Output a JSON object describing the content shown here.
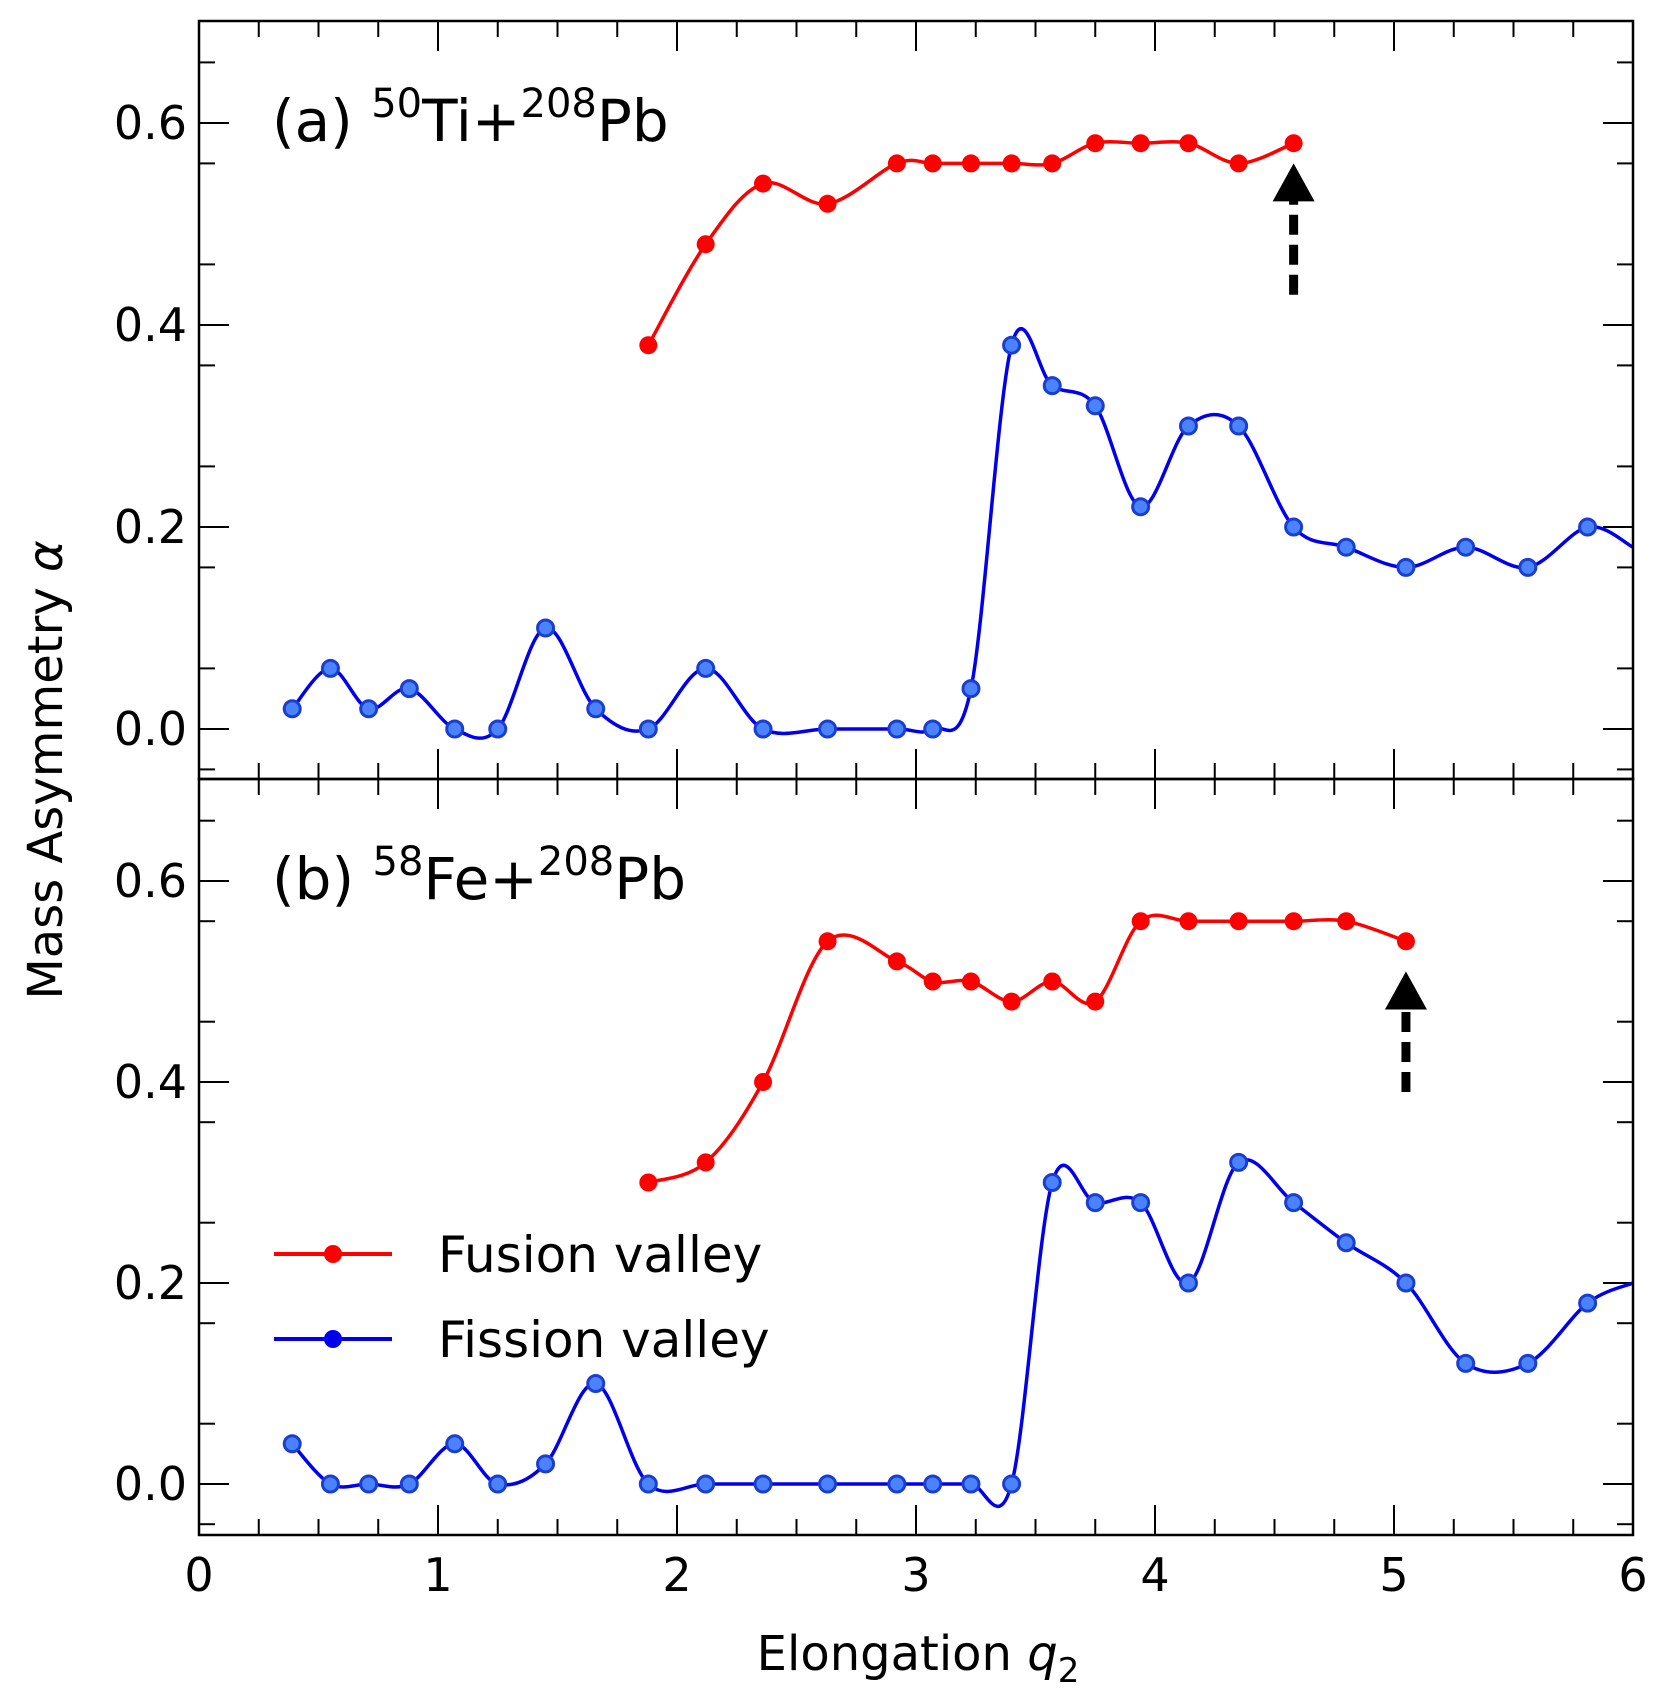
{
  "figure": {
    "ylabel_text": "Mass Asymmetry ",
    "ylabel_symbol": "α",
    "xlabel_text": "Elongation ",
    "xlabel_symbol": "q",
    "xlabel_sub": "2"
  },
  "legend": {
    "placement": "lower-left of panel (b)",
    "items": [
      {
        "label": "Fusion valley",
        "color": "#ff0000"
      },
      {
        "label": "Fission valley",
        "color": "#0000ee"
      }
    ]
  },
  "chart_data": [
    {
      "type": "line",
      "panel": "a",
      "title_prefix": "(a) ",
      "title_parts": [
        {
          "sup": "50",
          "text": "Ti+"
        },
        {
          "sup": "208",
          "text": "Pb"
        }
      ],
      "xlim": [
        0,
        6
      ],
      "ylim": [
        -0.05,
        0.7
      ],
      "xticks": [
        "0",
        "1",
        "2",
        "3",
        "4",
        "5",
        "6"
      ],
      "yticks": [
        "0.0",
        "0.2",
        "0.4",
        "0.6"
      ],
      "arrow": {
        "x": 4.58,
        "y_from": 0.43,
        "y_to": 0.56
      },
      "series": [
        {
          "name": "Fusion valley",
          "color": "#ff0000",
          "x": [
            1.88,
            2.12,
            2.36,
            2.63,
            2.92,
            3.07,
            3.23,
            3.4,
            3.57,
            3.75,
            3.94,
            4.14,
            4.35,
            4.58
          ],
          "y": [
            0.38,
            0.48,
            0.54,
            0.52,
            0.56,
            0.56,
            0.56,
            0.56,
            0.56,
            0.58,
            0.58,
            0.58,
            0.56,
            0.58
          ]
        },
        {
          "name": "Fission valley",
          "color": "#0000ee",
          "x": [
            0.39,
            0.55,
            0.71,
            0.88,
            1.07,
            1.25,
            1.45,
            1.66,
            1.88,
            2.12,
            2.36,
            2.63,
            2.92,
            3.07,
            3.23,
            3.4,
            3.57,
            3.75,
            3.94,
            4.14,
            4.35,
            4.58,
            4.8,
            5.05,
            5.3,
            5.56,
            5.81,
            6.0
          ],
          "y": [
            0.02,
            0.06,
            0.02,
            0.04,
            0.0,
            0.0,
            0.1,
            0.02,
            0.0,
            0.06,
            0.0,
            0.0,
            0.0,
            0.0,
            0.04,
            0.38,
            0.34,
            0.32,
            0.22,
            0.3,
            0.3,
            0.2,
            0.18,
            0.16,
            0.18,
            0.16,
            0.2,
            0.18
          ],
          "marker_count": 27
        }
      ]
    },
    {
      "type": "line",
      "panel": "b",
      "title_prefix": "(b) ",
      "title_parts": [
        {
          "sup": "58",
          "text": "Fe+"
        },
        {
          "sup": "208",
          "text": "Pb"
        }
      ],
      "xlim": [
        0,
        6
      ],
      "ylim": [
        -0.05,
        0.7
      ],
      "xticks": [
        "0",
        "1",
        "2",
        "3",
        "4",
        "5",
        "6"
      ],
      "yticks": [
        "0.0",
        "0.2",
        "0.4",
        "0.6"
      ],
      "arrow": {
        "x": 5.05,
        "y_from": 0.39,
        "y_to": 0.51
      },
      "series": [
        {
          "name": "Fusion valley",
          "color": "#ff0000",
          "x": [
            1.88,
            2.12,
            2.36,
            2.63,
            2.92,
            3.07,
            3.23,
            3.4,
            3.57,
            3.75,
            3.94,
            4.14,
            4.35,
            4.58,
            4.8,
            5.05
          ],
          "y": [
            0.3,
            0.32,
            0.4,
            0.54,
            0.52,
            0.5,
            0.5,
            0.48,
            0.5,
            0.48,
            0.56,
            0.56,
            0.56,
            0.56,
            0.56,
            0.54
          ]
        },
        {
          "name": "Fission valley",
          "color": "#0000ee",
          "x": [
            0.39,
            0.55,
            0.71,
            0.88,
            1.07,
            1.25,
            1.45,
            1.66,
            1.88,
            2.12,
            2.36,
            2.63,
            2.92,
            3.07,
            3.23,
            3.4,
            3.57,
            3.75,
            3.94,
            4.14,
            4.35,
            4.58,
            4.8,
            5.05,
            5.3,
            5.56,
            5.81,
            6.0
          ],
          "y": [
            0.04,
            0.0,
            0.0,
            0.0,
            0.04,
            0.0,
            0.02,
            0.1,
            0.0,
            0.0,
            0.0,
            0.0,
            0.0,
            0.0,
            0.0,
            0.0,
            0.3,
            0.28,
            0.28,
            0.2,
            0.32,
            0.28,
            0.24,
            0.2,
            0.12,
            0.12,
            0.18,
            0.2
          ],
          "marker_count": 27
        }
      ]
    }
  ]
}
